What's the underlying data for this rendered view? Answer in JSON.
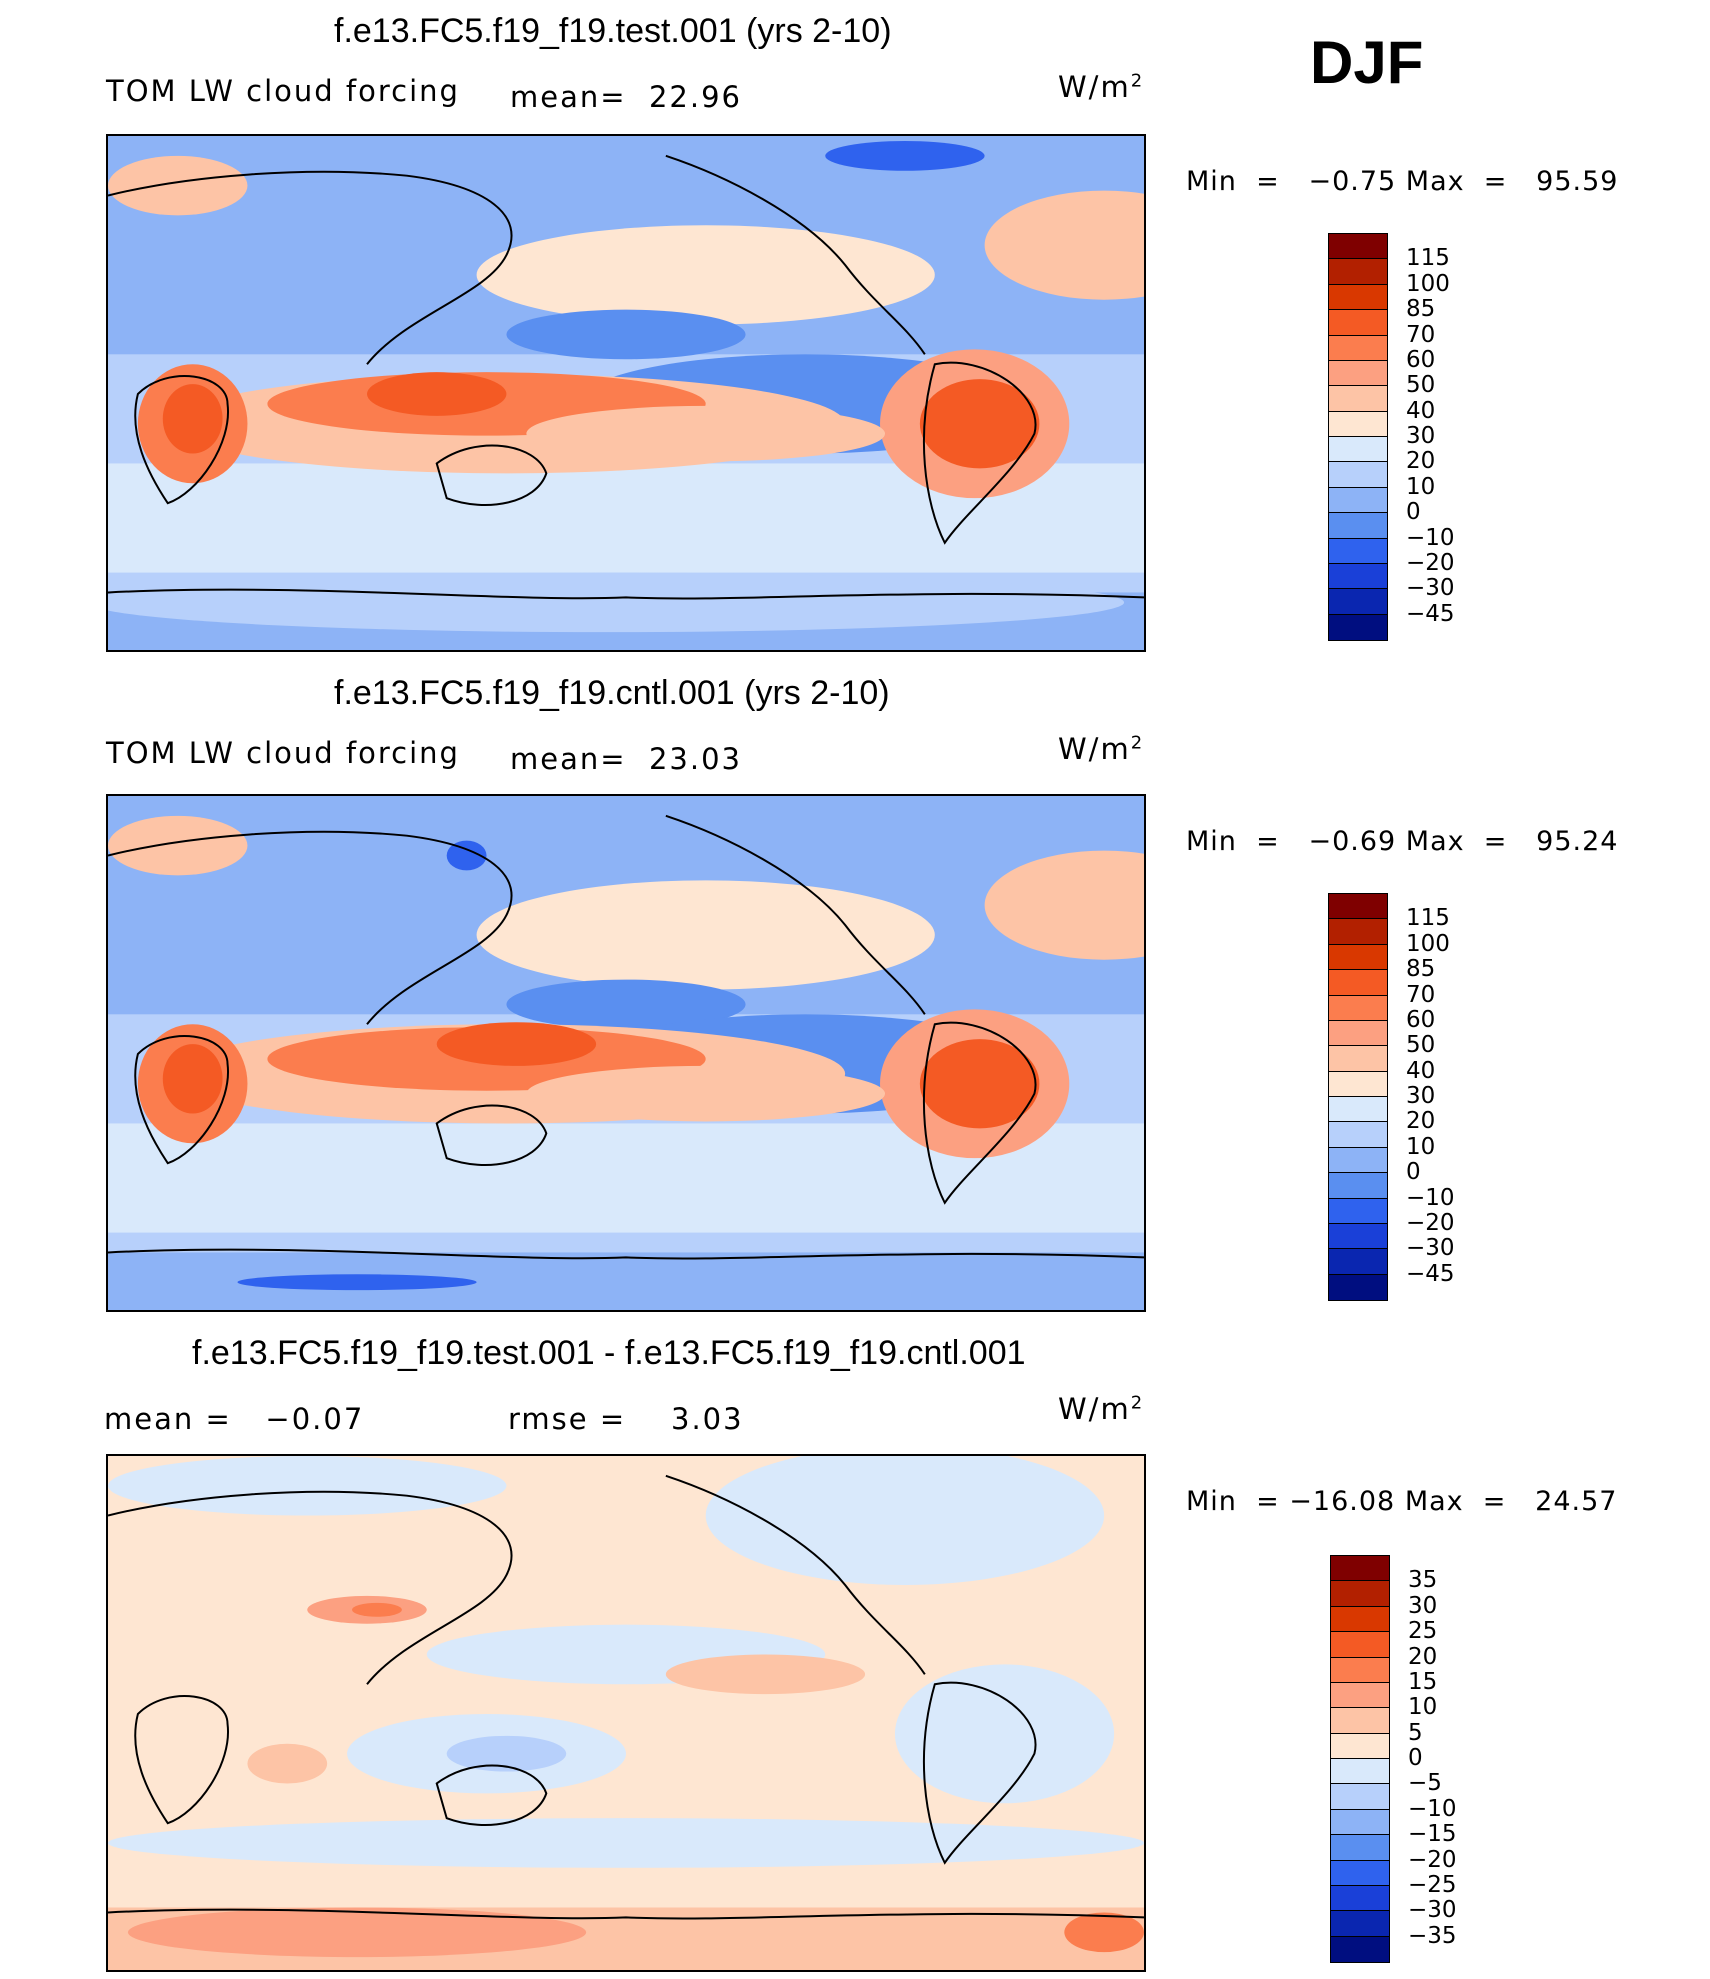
{
  "season": "DJF",
  "panels": [
    {
      "title": "f.e13.FC5.f19_f19.test.001 (yrs 2-10)",
      "variable": "TOM LW cloud forcing",
      "stat1_label": "mean=",
      "stat1_value": "22.96",
      "units_base": "W/m",
      "units_exp": "2",
      "min_label": "Min  =",
      "min_value": "−0.75",
      "max_label": "Max  =",
      "max_value": "95.59",
      "colorbar_labels": [
        "115",
        "100",
        "85",
        "70",
        "60",
        "50",
        "40",
        "30",
        "20",
        "10",
        "0",
        "−10",
        "−20",
        "−30",
        "−45"
      ],
      "colorbar_colors": [
        "#7f0000",
        "#b22000",
        "#d93800",
        "#f45a24",
        "#fb7d4e",
        "#fca081",
        "#fdc4a6",
        "#fee6d2",
        "#d9e9fb",
        "#b7d0fb",
        "#8db3f6",
        "#5a8ff0",
        "#2f62ee",
        "#1a40d8",
        "#0a26b0",
        "#000e80"
      ]
    },
    {
      "title": "f.e13.FC5.f19_f19.cntl.001 (yrs 2-10)",
      "variable": "TOM LW cloud forcing",
      "stat1_label": "mean=",
      "stat1_value": "23.03",
      "units_base": "W/m",
      "units_exp": "2",
      "min_label": "Min  =",
      "min_value": "−0.69",
      "max_label": "Max  =",
      "max_value": "95.24",
      "colorbar_labels": [
        "115",
        "100",
        "85",
        "70",
        "60",
        "50",
        "40",
        "30",
        "20",
        "10",
        "0",
        "−10",
        "−20",
        "−30",
        "−45"
      ],
      "colorbar_colors": [
        "#7f0000",
        "#b22000",
        "#d93800",
        "#f45a24",
        "#fb7d4e",
        "#fca081",
        "#fdc4a6",
        "#fee6d2",
        "#d9e9fb",
        "#b7d0fb",
        "#8db3f6",
        "#5a8ff0",
        "#2f62ee",
        "#1a40d8",
        "#0a26b0",
        "#000e80"
      ]
    },
    {
      "title": "f.e13.FC5.f19_f19.test.001 - f.e13.FC5.f19_f19.cntl.001",
      "stat1_label": "mean  =",
      "stat1_value": "−0.07",
      "stat2_label": "rmse  =",
      "stat2_value": "3.03",
      "units_base": "W/m",
      "units_exp": "2",
      "min_label": "Min  =",
      "min_value": "−16.08",
      "max_label": "Max  =",
      "max_value": "24.57",
      "colorbar_labels": [
        "35",
        "30",
        "25",
        "20",
        "15",
        "10",
        "5",
        "0",
        "−5",
        "−10",
        "−15",
        "−20",
        "−25",
        "−30",
        "−35"
      ],
      "colorbar_colors": [
        "#7f0000",
        "#b22000",
        "#d93800",
        "#f45a24",
        "#fb7d4e",
        "#fca081",
        "#fdc4a6",
        "#fee6d2",
        "#d9e9fb",
        "#b7d0fb",
        "#8db3f6",
        "#5a8ff0",
        "#2f62ee",
        "#1a40d8",
        "#0a26b0",
        "#000e80"
      ]
    }
  ]
}
